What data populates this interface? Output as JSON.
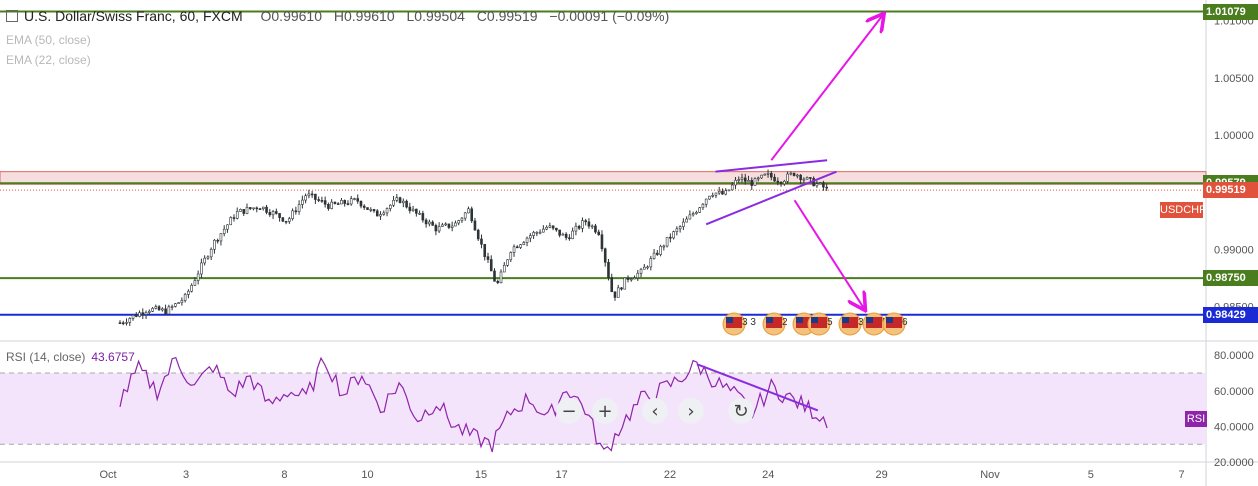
{
  "header": {
    "symbol_title": "U.S. Dollar/Swiss Franc, 60, FXCM",
    "open": "O0.99610",
    "high": "H0.99610",
    "low": "L0.99504",
    "close": "C0.99519",
    "change": "−0.00091 (−0.09%)"
  },
  "indicators": {
    "ema50": "EMA (50, close)",
    "ema22": "EMA (22, close)"
  },
  "rsi": {
    "label": "RSI (14, close)",
    "value": "43.6757",
    "tag": "RSI"
  },
  "symbol_tag": "USDCHF",
  "colors": {
    "candle": "#2d3436",
    "support_line": "#4a7d1e",
    "blue_line": "#1a2bd6",
    "arrow": "#e815e8",
    "wedge": "#8a2be2",
    "rsi_line": "#8e24aa",
    "rsi_band": "#f3e3fb",
    "resistance_zone": "#f6dede",
    "price_tag": "#e0523b"
  },
  "navigation": {
    "zoom_out": "−",
    "zoom_in": "+",
    "scroll_left": "‹",
    "scroll_right": "›",
    "reset": "↻"
  },
  "chart_data": {
    "type": "candlestick",
    "x_ticks": [
      "Oct",
      "3",
      "8",
      "10",
      "15",
      "17",
      "22",
      "24",
      "29",
      "Nov",
      "5",
      "7"
    ],
    "price_axis": {
      "range": [
        0.982,
        1.0118
      ],
      "ticks": [
        "1.01000",
        "1.00500",
        "1.00000",
        "0.99500",
        "0.99000",
        "0.98500"
      ]
    },
    "price_labels": [
      {
        "text": "1.01079",
        "value": 1.01079,
        "color": "#4a7d1e"
      },
      {
        "text": "0.99579",
        "value": 0.99579,
        "color": "#4a7d1e"
      },
      {
        "text": "0.99519",
        "value": 0.99519,
        "color": "#e0523b"
      },
      {
        "text": "0.98750",
        "value": 0.9875,
        "color": "#4a7d1e"
      },
      {
        "text": "0.98429",
        "value": 0.98429,
        "color": "#1a2bd6"
      }
    ],
    "horizontal_levels": [
      1.01079,
      0.99579,
      0.9875,
      0.98429
    ],
    "resistance_zone": [
      0.9957,
      0.9968
    ],
    "series_points": [
      [
        0,
        0.9836
      ],
      [
        6,
        0.9848
      ],
      [
        10,
        0.9846
      ],
      [
        14,
        0.9858
      ],
      [
        20,
        0.9905
      ],
      [
        25,
        0.9932
      ],
      [
        30,
        0.9938
      ],
      [
        36,
        0.9925
      ],
      [
        40,
        0.9948
      ],
      [
        45,
        0.9938
      ],
      [
        51,
        0.9943
      ],
      [
        55,
        0.993
      ],
      [
        60,
        0.9944
      ],
      [
        64,
        0.993
      ],
      [
        68,
        0.9918
      ],
      [
        72,
        0.9922
      ],
      [
        75,
        0.9935
      ],
      [
        78,
        0.99
      ],
      [
        81,
        0.9868
      ],
      [
        84,
        0.99
      ],
      [
        88,
        0.9912
      ],
      [
        92,
        0.992
      ],
      [
        96,
        0.991
      ],
      [
        100,
        0.9925
      ],
      [
        103,
        0.9915
      ],
      [
        106,
        0.9858
      ],
      [
        109,
        0.9875
      ],
      [
        112,
        0.988
      ],
      [
        115,
        0.9895
      ],
      [
        118,
        0.991
      ],
      [
        121,
        0.9922
      ],
      [
        124,
        0.9935
      ],
      [
        127,
        0.995
      ],
      [
        130,
        0.9948
      ],
      [
        133,
        0.9962
      ],
      [
        136,
        0.9958
      ],
      [
        139,
        0.9965
      ],
      [
        142,
        0.996
      ],
      [
        145,
        0.9967
      ],
      [
        148,
        0.996
      ],
      [
        151,
        0.9955
      ],
      [
        152,
        0.9952
      ]
    ],
    "rsi_axis": {
      "range": [
        20,
        88
      ],
      "ticks": [
        "80.0000",
        "60.0000",
        "40.0000",
        "20.0000"
      ],
      "band": [
        30,
        70
      ]
    },
    "rsi_points": [
      [
        0,
        55
      ],
      [
        4,
        72
      ],
      [
        8,
        60
      ],
      [
        12,
        78
      ],
      [
        16,
        62
      ],
      [
        20,
        74
      ],
      [
        24,
        58
      ],
      [
        28,
        68
      ],
      [
        32,
        52
      ],
      [
        36,
        60
      ],
      [
        40,
        56
      ],
      [
        44,
        78
      ],
      [
        48,
        58
      ],
      [
        52,
        70
      ],
      [
        56,
        50
      ],
      [
        60,
        64
      ],
      [
        64,
        44
      ],
      [
        68,
        54
      ],
      [
        72,
        40
      ],
      [
        76,
        34
      ],
      [
        80,
        30
      ],
      [
        84,
        48
      ],
      [
        88,
        56
      ],
      [
        92,
        44
      ],
      [
        96,
        62
      ],
      [
        100,
        50
      ],
      [
        104,
        24
      ],
      [
        108,
        42
      ],
      [
        112,
        55
      ],
      [
        116,
        60
      ],
      [
        120,
        66
      ],
      [
        124,
        75
      ],
      [
        128,
        65
      ],
      [
        132,
        58
      ],
      [
        136,
        48
      ],
      [
        140,
        62
      ],
      [
        144,
        56
      ],
      [
        148,
        50
      ],
      [
        152,
        44
      ]
    ],
    "annotations": [
      {
        "type": "arrow",
        "from": [
          140,
          0.9978
        ],
        "to": [
          164,
          1.0105
        ]
      },
      {
        "type": "arrow",
        "from": [
          145,
          0.9943
        ],
        "to": [
          160,
          0.9848
        ]
      },
      {
        "type": "trendline",
        "from": [
          128,
          0.9968
        ],
        "to": [
          152,
          0.9978
        ]
      },
      {
        "type": "trendline",
        "from": [
          126,
          0.9922
        ],
        "to": [
          154,
          0.9968
        ]
      },
      {
        "type": "rsi_trendline",
        "from": [
          124,
          75
        ],
        "to": [
          150,
          49
        ]
      }
    ],
    "event_icons": [
      "3 3",
      "2",
      "8",
      "5",
      "3 4",
      "5",
      "6"
    ]
  }
}
